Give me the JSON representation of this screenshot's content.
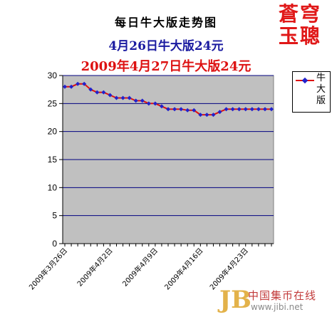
{
  "titles": {
    "main": "每日牛大版走势图",
    "sub1": "4月26日牛大版24元",
    "sub2": "2009年4月27日牛大版24元"
  },
  "seal": {
    "line1": "蒼穹",
    "line2": "玉聰"
  },
  "watermark": {
    "logo": "JB",
    "name": "中国集币在线",
    "url": "www.jibi.net"
  },
  "colors": {
    "line": "#dd1111",
    "marker": "#2222cc",
    "plot_bg": "#c0c0c0",
    "grid": "#000080"
  },
  "chart_data": {
    "type": "line",
    "title": "每日牛大版走势图",
    "xlabel": "",
    "ylabel": "",
    "ylim": [
      0,
      30
    ],
    "yticks": [
      0,
      5,
      10,
      15,
      20,
      25,
      30
    ],
    "grid": "horizontal",
    "legend": "right",
    "x": [
      "2009年3月26日",
      "2009年3月27日",
      "2009年3月28日",
      "2009年3月29日",
      "2009年3月30日",
      "2009年3月31日",
      "2009年4月1日",
      "2009年4月2日",
      "2009年4月3日",
      "2009年4月4日",
      "2009年4月5日",
      "2009年4月6日",
      "2009年4月7日",
      "2009年4月8日",
      "2009年4月9日",
      "2009年4月10日",
      "2009年4月11日",
      "2009年4月12日",
      "2009年4月13日",
      "2009年4月14日",
      "2009年4月15日",
      "2009年4月16日",
      "2009年4月17日",
      "2009年4月18日",
      "2009年4月19日",
      "2009年4月20日",
      "2009年4月21日",
      "2009年4月22日",
      "2009年4月23日",
      "2009年4月24日",
      "2009年4月25日",
      "2009年4月26日",
      "2009年4月27日"
    ],
    "x_tick_labels": [
      "2009年3月26日",
      "2009年4月2日",
      "2009年4月9日",
      "2009年4月16日",
      "2009年4月23日"
    ],
    "series": [
      {
        "name": "牛大版",
        "values": [
          28,
          28,
          28.5,
          28.5,
          27.5,
          27,
          27,
          26.5,
          26,
          26,
          26,
          25.5,
          25.5,
          25,
          25,
          24.5,
          24,
          24,
          24,
          23.8,
          23.8,
          23,
          23,
          23,
          23.5,
          24,
          24,
          24,
          24,
          24,
          24,
          24,
          24
        ]
      }
    ]
  }
}
